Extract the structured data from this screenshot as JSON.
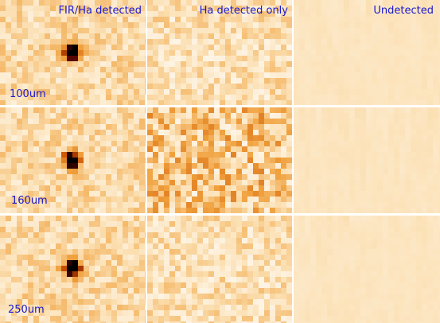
{
  "columns": [
    "FIR/Ha detected",
    "Ha detected only",
    "Undetected"
  ],
  "rows": [
    "100um",
    "160um",
    "250um"
  ]
}
